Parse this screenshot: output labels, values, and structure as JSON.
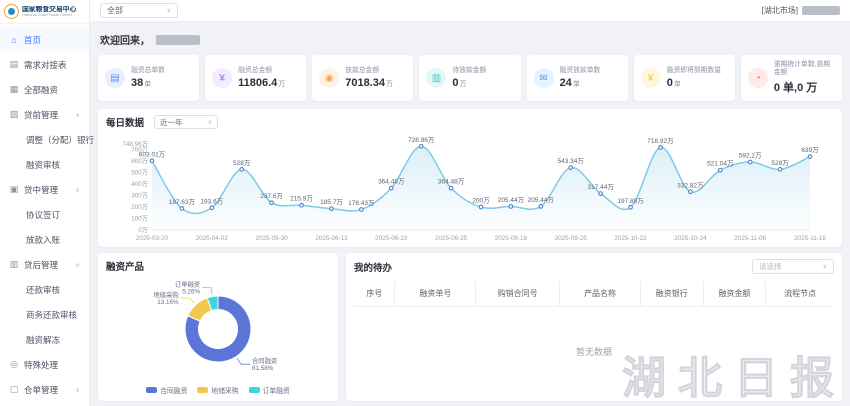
{
  "brand": {
    "title": "国家粮食交易中心",
    "subtitle": "National Grain Trade Center"
  },
  "ui": {
    "chevron_down": "∨"
  },
  "topbar": {
    "org_filter_value": "全部",
    "market_label": "[湖北市场]"
  },
  "sidebar": {
    "items": [
      {
        "label": "首页",
        "icon": "⌂"
      },
      {
        "label": "需求对接表",
        "icon": "▤"
      },
      {
        "label": "全部融资",
        "icon": "▦"
      },
      {
        "label": "贷前管理",
        "icon": "▨",
        "chevron": "∧"
      },
      {
        "label": "调整（分配）银行"
      },
      {
        "label": "融资审核"
      },
      {
        "label": "贷中管理",
        "icon": "▣",
        "chevron": "∧"
      },
      {
        "label": "协议签订"
      },
      {
        "label": "放款入账"
      },
      {
        "label": "贷后管理",
        "icon": "▥",
        "chevron": "∧"
      },
      {
        "label": "还款审核"
      },
      {
        "label": "商务还款审核"
      },
      {
        "label": "融资解冻"
      },
      {
        "label": "特殊处理",
        "icon": "◎"
      },
      {
        "label": "仓单管理",
        "icon": "▢",
        "chevron": "∨"
      }
    ]
  },
  "welcome": {
    "greeting": "欢迎回来，"
  },
  "stats": [
    {
      "label": "融资总单数",
      "value": "38",
      "unit": "单",
      "icon": "▤",
      "icon_name": "document-icon",
      "color": "#5b8ff9",
      "bg": "#e8f0fe"
    },
    {
      "label": "融资总金额",
      "value": "11806.4",
      "unit": "万",
      "icon": "¥",
      "icon_name": "money-bag-icon",
      "color": "#a466f2",
      "bg": "#f3ebfe"
    },
    {
      "label": "放款总金额",
      "value": "7018.34",
      "unit": "万",
      "icon": "◉",
      "icon_name": "coin-icon",
      "color": "#f5a44a",
      "bg": "#fef2e3"
    },
    {
      "label": "待放款金额",
      "value": "0",
      "unit": "万",
      "icon": "▥",
      "icon_name": "pending-payment-icon",
      "color": "#49c7c0",
      "bg": "#e4f8f6"
    },
    {
      "label": "融资放款单数",
      "value": "24",
      "unit": "单",
      "icon": "✉",
      "icon_name": "disbursement-order-icon",
      "color": "#4aa3f5",
      "bg": "#e6f2fe"
    },
    {
      "label": "融资即将到期数量",
      "value": "0",
      "unit": "单",
      "icon": "¥",
      "icon_name": "due-soon-icon",
      "color": "#f2c53d",
      "bg": "#fdf7e0"
    },
    {
      "label": "逾期统计单数,逾期金额",
      "value": "0 单,0 万",
      "unit": "",
      "icon": "◔",
      "icon_name": "overdue-clock-icon",
      "color": "#f56c6c",
      "bg": "#fdeaea"
    }
  ],
  "chart_data": [
    {
      "type": "line",
      "title": "每日数据",
      "range_value": "近一年",
      "x_tick_dates": [
        "2025-03-20",
        "2025-04-02",
        "2025-05-30",
        "2025-06-13",
        "2025-06-23",
        "2025-06-25",
        "2025-08-18",
        "2025-09-25",
        "2025-10-22",
        "2025-10-24",
        "2025-11-06",
        "2025-11-18"
      ],
      "x_tick_indices": [
        0,
        2,
        4,
        6,
        8,
        10,
        12,
        14,
        16,
        18,
        20,
        22
      ],
      "values": [
        603.01,
        187.63,
        193.6,
        528,
        237.6,
        215.9,
        185.7,
        178.43,
        364.48,
        728.96,
        364.48,
        200,
        205.44,
        205.44,
        543.34,
        317.44,
        197.88,
        718.92,
        332.82,
        521.04,
        592.2,
        528,
        639
      ],
      "unit": "万",
      "y_ticks": [
        0,
        100,
        200,
        300,
        400,
        500,
        600,
        700,
        748.96
      ],
      "ylim": [
        0,
        748.96
      ],
      "grid": false,
      "line_color": "#7ecbe8",
      "marker_color": "#4f81c7",
      "area_color": "#bfe3f2"
    },
    {
      "type": "pie",
      "title": "融资产品",
      "legend_position": "bottom",
      "slices": [
        {
          "name": "合同融资",
          "pct": 81.58,
          "color": "#5b76d8"
        },
        {
          "name": "地储采购",
          "pct": 13.16,
          "color": "#f2c94c"
        },
        {
          "name": "订单融资",
          "pct": 5.26,
          "color": "#3fd2e4"
        }
      ]
    }
  ],
  "todo_panel": {
    "title": "我的待办",
    "filter_placeholder": "请选择",
    "columns": [
      "序号",
      "融资单号",
      "购销合同号",
      "产品名称",
      "融资银行",
      "融资金额",
      "流程节点"
    ],
    "rows": [],
    "empty_text": "暂无数据"
  },
  "watermark": {
    "text": "湖北日报"
  }
}
